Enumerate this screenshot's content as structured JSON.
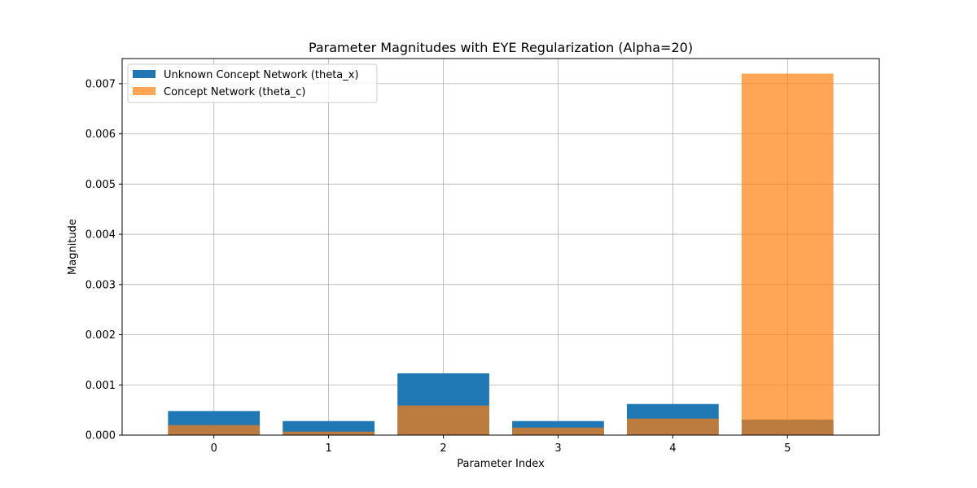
{
  "chart_data": {
    "type": "bar",
    "title": "Parameter Magnitudes with EYE Regularization (Alpha=20)",
    "xlabel": "Parameter Index",
    "ylabel": "Magnitude",
    "categories": [
      "0",
      "1",
      "2",
      "3",
      "4",
      "5"
    ],
    "ylim": [
      0,
      0.0075
    ],
    "yticks": [
      "0.000",
      "0.001",
      "0.002",
      "0.003",
      "0.004",
      "0.005",
      "0.006",
      "0.007"
    ],
    "grid": true,
    "legend_position": "upper-left",
    "series": [
      {
        "name": "Unknown Concept Network (theta_x)",
        "color": "#1f77b4",
        "opacity": 1.0,
        "values": [
          0.00048,
          0.00028,
          0.00123,
          0.00028,
          0.00062,
          0.00031
        ]
      },
      {
        "name": "Concept Network (theta_c)",
        "color": "#ff7f0e",
        "opacity": 0.7,
        "values": [
          0.0002,
          7e-05,
          0.00059,
          0.00015,
          0.00033,
          0.0072
        ]
      }
    ]
  }
}
